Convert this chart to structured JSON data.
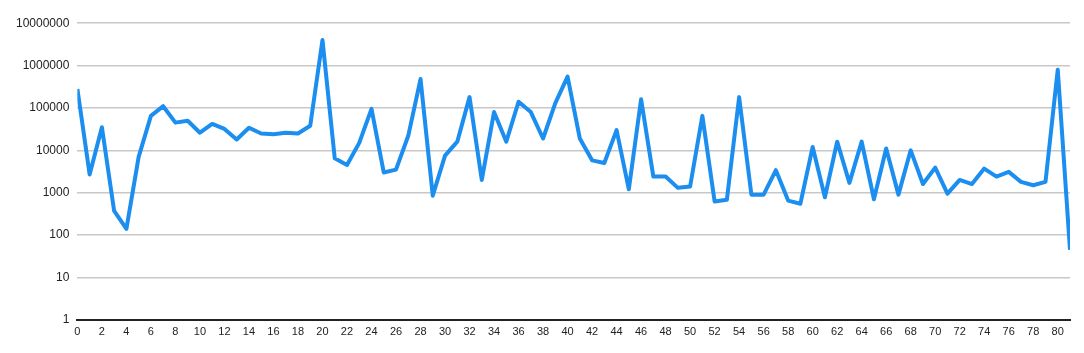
{
  "chart_data": {
    "type": "line",
    "x": [
      0,
      1,
      2,
      3,
      4,
      5,
      6,
      7,
      8,
      9,
      10,
      11,
      12,
      13,
      14,
      15,
      16,
      17,
      18,
      19,
      20,
      21,
      22,
      23,
      24,
      25,
      26,
      27,
      28,
      29,
      30,
      31,
      32,
      33,
      34,
      35,
      36,
      37,
      38,
      39,
      40,
      41,
      42,
      43,
      44,
      45,
      46,
      47,
      48,
      49,
      50,
      51,
      52,
      53,
      54,
      55,
      56,
      57,
      58,
      59,
      60,
      61,
      62,
      63,
      64,
      65,
      66,
      67,
      68,
      69,
      70,
      71,
      72,
      73,
      74,
      75,
      76,
      77,
      78,
      79,
      80,
      81
    ],
    "xlim": [
      0,
      81
    ],
    "xticks": [
      0,
      2,
      4,
      6,
      8,
      10,
      12,
      14,
      16,
      18,
      20,
      22,
      24,
      26,
      28,
      30,
      32,
      34,
      36,
      38,
      40,
      42,
      44,
      46,
      48,
      50,
      52,
      54,
      56,
      58,
      60,
      62,
      64,
      66,
      68,
      70,
      72,
      74,
      76,
      78,
      80
    ],
    "series": [
      {
        "color": "#1b8ef0",
        "values": [
          280000,
          2700,
          35000,
          370,
          140,
          7000,
          65000,
          110000,
          45000,
          50000,
          26000,
          42000,
          32000,
          18000,
          34000,
          25000,
          24000,
          26000,
          25000,
          38000,
          4000000,
          6500,
          4500,
          15000,
          95000,
          3000,
          3500,
          22000,
          480000,
          850,
          7500,
          16000,
          180000,
          2000,
          80000,
          16000,
          140000,
          80000,
          19000,
          130000,
          550000,
          19000,
          5800,
          5000,
          30000,
          1200,
          160000,
          2400,
          2400,
          1300,
          1400,
          65000,
          620,
          680,
          180000,
          900,
          900,
          3400,
          650,
          550,
          12000,
          780,
          16000,
          1700,
          16000,
          700,
          11000,
          900,
          10000,
          1600,
          3900,
          950,
          2000,
          1600,
          3700,
          2400,
          3100,
          1800,
          1500,
          1800,
          800000,
          45
        ]
      }
    ],
    "log": true,
    "ylim": [
      1,
      10000000
    ],
    "yticks": [
      1,
      10,
      100,
      1000,
      10000,
      100000,
      1000000,
      10000000
    ],
    "grid": "y",
    "legend": false,
    "marker": "none",
    "line_style": "solid"
  }
}
